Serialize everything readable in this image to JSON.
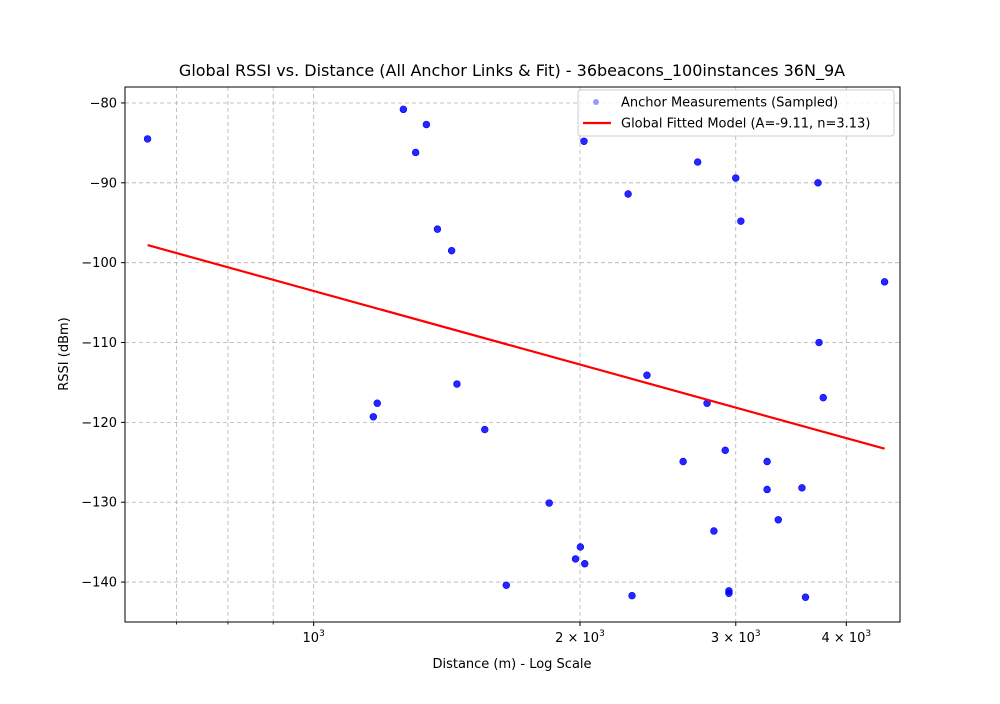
{
  "chart_data": {
    "type": "scatter",
    "title": "Global RSSI vs. Distance (All Anchor Links & Fit) - 36beacons_100instances 36N_9A",
    "xlabel": "Distance (m) - Log Scale",
    "ylabel": "RSSI (dBm)",
    "x_scale": "log",
    "xlim": [
      612,
      4600
    ],
    "ylim": [
      -145,
      -78
    ],
    "grid": true,
    "legend_position": "top-right",
    "x_ticks": [
      {
        "value": 1000,
        "label": "10",
        "exp": "3"
      },
      {
        "value": 2000,
        "label": "2 × 10",
        "exp": "3"
      },
      {
        "value": 3000,
        "label": "3 × 10",
        "exp": "3"
      },
      {
        "value": 4000,
        "label": "4 × 10",
        "exp": "3"
      }
    ],
    "x_minor_ticks": [
      700,
      800,
      900
    ],
    "y_ticks": [
      -80,
      -90,
      -100,
      -110,
      -120,
      -130,
      -140
    ],
    "y_tick_labels": [
      "−80",
      "−90",
      "−100",
      "−110",
      "−120",
      "−130",
      "−140"
    ],
    "series": [
      {
        "name": "Anchor Measurements (Sampled)",
        "kind": "scatter",
        "color": "#0000ff",
        "points": [
          [
            649,
            -84.5
          ],
          [
            1263,
            -80.8
          ],
          [
            1341,
            -82.7
          ],
          [
            1304,
            -86.2
          ],
          [
            1380,
            -95.8
          ],
          [
            1432,
            -98.5
          ],
          [
            1452,
            -115.2
          ],
          [
            1180,
            -117.6
          ],
          [
            1168,
            -119.3
          ],
          [
            1561,
            -120.9
          ],
          [
            1651,
            -140.4
          ],
          [
            1846,
            -130.1
          ],
          [
            1977,
            -137.1
          ],
          [
            2002,
            -135.6
          ],
          [
            2025,
            -137.7
          ],
          [
            2021,
            -84.8
          ],
          [
            2267,
            -91.4
          ],
          [
            2290,
            -141.7
          ],
          [
            2381,
            -114.1
          ],
          [
            2616,
            -124.9
          ],
          [
            2717,
            -87.4
          ],
          [
            2784,
            -117.6
          ],
          [
            2834,
            -133.6
          ],
          [
            2919,
            -123.5
          ],
          [
            2947,
            -141.1
          ],
          [
            2947,
            -141.4
          ],
          [
            3000,
            -89.4
          ],
          [
            3040,
            -94.8
          ],
          [
            3255,
            -124.9
          ],
          [
            3255,
            -128.4
          ],
          [
            3351,
            -132.2
          ],
          [
            3564,
            -128.2
          ],
          [
            3597,
            -141.9
          ],
          [
            3716,
            -90.0
          ],
          [
            3726,
            -110.0
          ],
          [
            3767,
            -116.9
          ],
          [
            4419,
            -102.4
          ]
        ]
      },
      {
        "name": "Global Fitted Model (A=-9.11, n=3.13)",
        "kind": "line",
        "color": "#ff0000",
        "points": [
          [
            649,
            -97.8
          ],
          [
            4419,
            -123.3
          ]
        ]
      }
    ]
  }
}
